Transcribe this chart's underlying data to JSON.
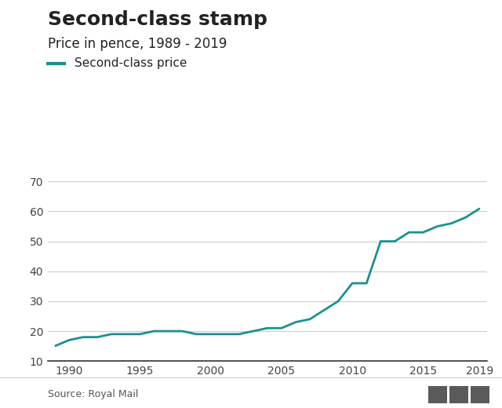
{
  "title": "Second-class stamp",
  "subtitle": "Price in pence, 1989 - 2019",
  "legend_label": "Second-class price",
  "source": "Source: Royal Mail",
  "line_color": "#1a9090",
  "background_color": "#ffffff",
  "years": [
    1989,
    1990,
    1991,
    1992,
    1993,
    1994,
    1995,
    1996,
    1997,
    1998,
    1999,
    2000,
    2001,
    2002,
    2003,
    2004,
    2005,
    2006,
    2007,
    2008,
    2009,
    2010,
    2011,
    2012,
    2013,
    2014,
    2015,
    2016,
    2017,
    2018,
    2019
  ],
  "prices": [
    15,
    17,
    18,
    18,
    19,
    19,
    19,
    20,
    20,
    20,
    19,
    19,
    19,
    19,
    20,
    21,
    21,
    23,
    24,
    27,
    30,
    36,
    36,
    50,
    50,
    53,
    53,
    55,
    56,
    58,
    61
  ],
  "xlim": [
    1988.5,
    2019.5
  ],
  "ylim": [
    10,
    72
  ],
  "yticks": [
    10,
    20,
    30,
    40,
    50,
    60,
    70
  ],
  "xticks": [
    1990,
    1995,
    2000,
    2005,
    2010,
    2015,
    2019
  ],
  "grid_color": "#cccccc",
  "title_fontsize": 18,
  "subtitle_fontsize": 12,
  "legend_fontsize": 11,
  "tick_fontsize": 10,
  "source_fontsize": 9,
  "line_width": 2.0,
  "bbc_color": "#5a5a5a",
  "text_color": "#222222",
  "tick_color": "#444444"
}
